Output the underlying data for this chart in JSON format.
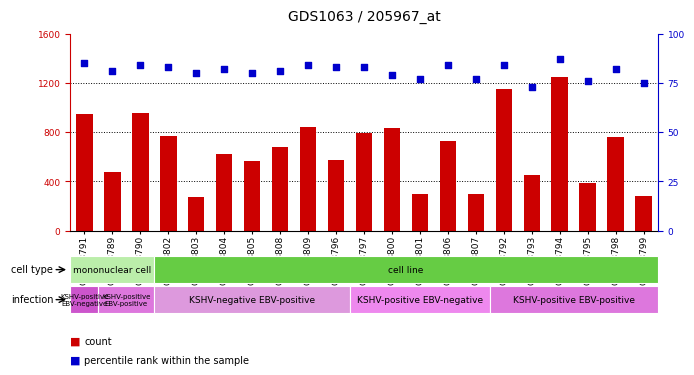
{
  "title": "GDS1063 / 205967_at",
  "samples": [
    "GSM38791",
    "GSM38789",
    "GSM38790",
    "GSM38802",
    "GSM38803",
    "GSM38804",
    "GSM38805",
    "GSM38808",
    "GSM38809",
    "GSM38796",
    "GSM38797",
    "GSM38800",
    "GSM38801",
    "GSM38806",
    "GSM38807",
    "GSM38792",
    "GSM38793",
    "GSM38794",
    "GSM38795",
    "GSM38798",
    "GSM38799"
  ],
  "counts": [
    950,
    480,
    960,
    770,
    275,
    620,
    565,
    680,
    840,
    570,
    790,
    830,
    300,
    730,
    295,
    1150,
    450,
    1250,
    390,
    760,
    280
  ],
  "percentile_ranks": [
    85,
    81,
    84,
    83,
    80,
    82,
    80,
    81,
    84,
    83,
    83,
    79,
    77,
    84,
    77,
    84,
    73,
    87,
    76,
    82,
    75
  ],
  "ylim_left": [
    0,
    1600
  ],
  "ylim_right": [
    0,
    100
  ],
  "yticks_left": [
    0,
    400,
    800,
    1200,
    1600
  ],
  "yticks_right": [
    0,
    25,
    50,
    75,
    100
  ],
  "bar_color": "#cc0000",
  "dot_color": "#0000cc",
  "cell_type_groups": [
    {
      "text": "mononuclear cell",
      "span": 3,
      "color": "#bbeeaa"
    },
    {
      "text": "cell line",
      "span": 18,
      "color": "#66cc44"
    }
  ],
  "infection_groups": [
    {
      "text": "KSHV-positive\nEBV-negative",
      "span": 1,
      "color": "#cc55cc"
    },
    {
      "text": "KSHV-positive\nEBV-positive",
      "span": 2,
      "color": "#dd77dd"
    },
    {
      "text": "KSHV-negative EBV-positive",
      "span": 7,
      "color": "#dd99dd"
    },
    {
      "text": "KSHV-positive EBV-negative",
      "span": 5,
      "color": "#ee88ee"
    },
    {
      "text": "KSHV-positive EBV-positive",
      "span": 6,
      "color": "#dd77dd"
    }
  ],
  "title_fontsize": 10,
  "tick_fontsize": 6.5,
  "label_fontsize": 7.5,
  "row_label_fontsize": 7
}
